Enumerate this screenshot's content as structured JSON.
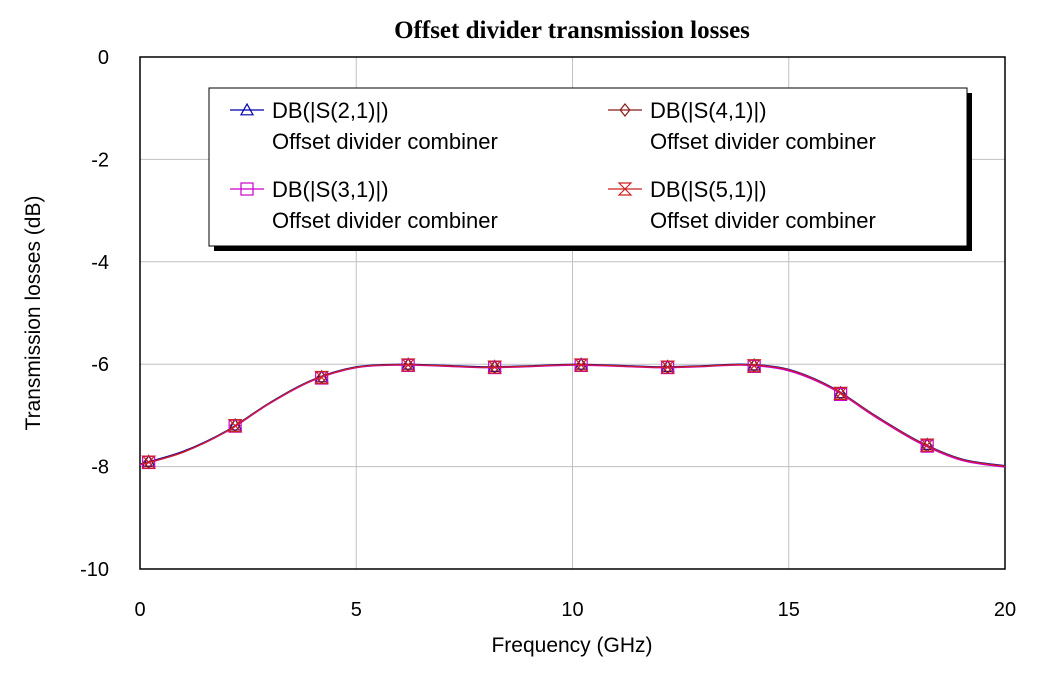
{
  "chart_data": {
    "type": "line",
    "title": "Offset divider transmission losses",
    "xlabel": "Frequency (GHz)",
    "ylabel": "Transmission losses (dB)",
    "xlim": [
      0,
      20
    ],
    "ylim": [
      -10,
      0
    ],
    "xticks": [
      "0",
      "5",
      "10",
      "15",
      "20"
    ],
    "yticks": [
      "0",
      "-2",
      "-4",
      "-6",
      "-8",
      "-10"
    ],
    "grid": true,
    "legend_position": "top",
    "series": [
      {
        "name": "DB(|S(2,1)|)",
        "subname": "Offset divider combiner",
        "color": "#0000aa",
        "marker": "triangle",
        "x": [
          0,
          1,
          2,
          3,
          4,
          5,
          6,
          7,
          8,
          9,
          10,
          11,
          12,
          13,
          14,
          15,
          16,
          17,
          18,
          19,
          20
        ],
        "y": [
          -7.95,
          -7.7,
          -7.3,
          -6.75,
          -6.3,
          -6.05,
          -6.0,
          -6.02,
          -6.05,
          -6.03,
          -6.0,
          -6.02,
          -6.05,
          -6.03,
          -6.0,
          -6.1,
          -6.45,
          -7.0,
          -7.5,
          -7.85,
          -7.98
        ],
        "marker_x": [
          0.2,
          2.2,
          4.2,
          6.2,
          8.2,
          10.2,
          12.2,
          14.2,
          16.2,
          18.2
        ]
      },
      {
        "name": "DB(|S(4,1)|)",
        "subname": "Offset divider combiner",
        "color": "#8b1a1a",
        "marker": "diamond",
        "x": [
          0,
          1,
          2,
          3,
          4,
          5,
          6,
          7,
          8,
          9,
          10,
          11,
          12,
          13,
          14,
          15,
          16,
          17,
          18,
          19,
          20
        ],
        "y": [
          -7.96,
          -7.71,
          -7.31,
          -6.76,
          -6.31,
          -6.06,
          -6.01,
          -6.03,
          -6.06,
          -6.04,
          -6.01,
          -6.03,
          -6.06,
          -6.04,
          -6.01,
          -6.12,
          -6.47,
          -7.02,
          -7.52,
          -7.87,
          -8.0
        ],
        "marker_x": [
          0.2,
          2.2,
          4.2,
          6.2,
          8.2,
          10.2,
          12.2,
          14.2,
          16.2,
          18.2
        ]
      },
      {
        "name": "DB(|S(3,1)|)",
        "subname": "Offset divider combiner",
        "color": "#cc00cc",
        "marker": "square",
        "x": [
          0,
          1,
          2,
          3,
          4,
          5,
          6,
          7,
          8,
          9,
          10,
          11,
          12,
          13,
          14,
          15,
          16,
          17,
          18,
          19,
          20
        ],
        "y": [
          -7.97,
          -7.72,
          -7.32,
          -6.77,
          -6.32,
          -6.07,
          -6.02,
          -6.04,
          -6.07,
          -6.05,
          -6.02,
          -6.04,
          -6.07,
          -6.05,
          -6.02,
          -6.13,
          -6.48,
          -7.03,
          -7.53,
          -7.88,
          -8.01
        ],
        "marker_x": [
          0.2,
          2.2,
          4.2,
          6.2,
          8.2,
          10.2,
          12.2,
          14.2,
          16.2,
          18.2
        ]
      },
      {
        "name": "DB(|S(5,1)|)",
        "subname": "Offset divider combiner",
        "color": "#cc2222",
        "marker": "bowtie",
        "x": [
          0,
          1,
          2,
          3,
          4,
          5,
          6,
          7,
          8,
          9,
          10,
          11,
          12,
          13,
          14,
          15,
          16,
          17,
          18,
          19,
          20
        ],
        "y": [
          -7.96,
          -7.72,
          -7.31,
          -6.76,
          -6.31,
          -6.06,
          -6.01,
          -6.03,
          -6.06,
          -6.04,
          -6.01,
          -6.03,
          -6.06,
          -6.04,
          -6.01,
          -6.11,
          -6.46,
          -7.01,
          -7.51,
          -7.86,
          -7.99
        ],
        "marker_x": [
          0.2,
          2.2,
          4.2,
          6.2,
          8.2,
          10.2,
          12.2,
          14.2,
          16.2,
          18.2
        ]
      }
    ]
  }
}
